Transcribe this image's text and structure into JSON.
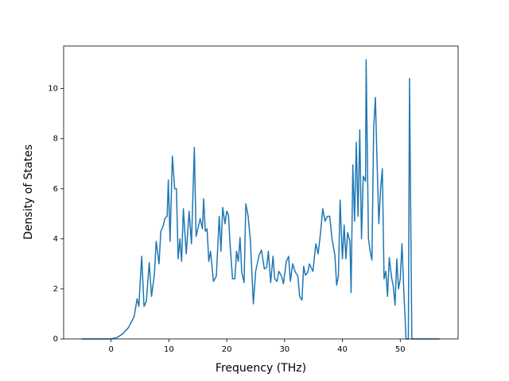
{
  "chart_data": {
    "type": "line",
    "x_label": "Frequency (THz)",
    "y_label": "Density of States",
    "xlim": [
      -8.2,
      60
    ],
    "ylim": [
      0,
      11.7
    ],
    "xticks": [
      0,
      10,
      20,
      30,
      40,
      50
    ],
    "yticks": [
      0,
      2,
      4,
      6,
      8,
      10
    ],
    "series": [
      {
        "color": "#1f77b4",
        "x": [
          -5.1,
          -2,
          0,
          1,
          2,
          3,
          4,
          4.5,
          4.8,
          5.3,
          5.7,
          6.1,
          6.6,
          7.0,
          7.5,
          7.8,
          8.3,
          8.6,
          9.0,
          9.3,
          9.7,
          9.9,
          10.2,
          10.6,
          11.0,
          11.3,
          11.6,
          11.9,
          12.2,
          12.5,
          13.0,
          13.5,
          13.9,
          14.4,
          14.7,
          15.0,
          15.4,
          15.8,
          16.0,
          16.3,
          16.6,
          16.9,
          17.2,
          17.7,
          18.2,
          18.7,
          19.0,
          19.3,
          19.7,
          20.0,
          20.3,
          20.6,
          21.0,
          21.4,
          21.7,
          22.0,
          22.3,
          22.6,
          23.0,
          23.3,
          23.7,
          24.1,
          24.6,
          25.0,
          25.6,
          26.0,
          26.5,
          26.9,
          27.2,
          27.6,
          28.0,
          28.3,
          28.7,
          29.0,
          29.5,
          29.8,
          30.3,
          30.7,
          31.0,
          31.4,
          31.8,
          32.3,
          32.6,
          33.0,
          33.3,
          33.6,
          34.0,
          34.3,
          34.9,
          35.4,
          35.8,
          36.2,
          36.6,
          37.0,
          37.4,
          37.8,
          38.2,
          38.7,
          39.0,
          39.3,
          39.6,
          40.0,
          40.3,
          40.6,
          40.9,
          41.3,
          41.5,
          41.8,
          42.1,
          42.4,
          42.7,
          43.0,
          43.3,
          43.6,
          44.0,
          44.1,
          44.5,
          44.8,
          45.1,
          45.4,
          45.7,
          46.0,
          46.3,
          46.6,
          46.9,
          47.2,
          47.5,
          47.8,
          48.1,
          48.5,
          48.8,
          49.1,
          49.4,
          49.7,
          50.0,
          50.3,
          50.6,
          51.0,
          51.4,
          51.6,
          52.0,
          52.5,
          56.8
        ],
        "values": [
          0,
          0,
          0,
          0.05,
          0.2,
          0.45,
          0.9,
          1.6,
          1.3,
          3.3,
          1.3,
          1.5,
          3.05,
          1.7,
          2.6,
          3.9,
          3.0,
          4.3,
          4.5,
          4.8,
          4.9,
          6.35,
          3.9,
          7.3,
          6.0,
          6.0,
          3.2,
          4.0,
          3.1,
          5.2,
          3.4,
          5.1,
          3.8,
          7.65,
          4.1,
          4.4,
          4.8,
          4.4,
          5.6,
          4.3,
          4.4,
          3.1,
          3.5,
          2.3,
          2.5,
          4.9,
          3.5,
          5.25,
          4.6,
          5.1,
          4.95,
          3.7,
          2.4,
          2.4,
          3.5,
          3.1,
          4.05,
          2.65,
          2.25,
          5.4,
          4.9,
          3.9,
          1.4,
          2.7,
          3.35,
          3.55,
          2.8,
          2.85,
          3.5,
          2.25,
          3.3,
          2.4,
          2.3,
          2.7,
          2.5,
          2.2,
          3.1,
          3.3,
          2.3,
          3.0,
          2.7,
          2.5,
          1.7,
          1.55,
          2.9,
          2.55,
          2.65,
          3.0,
          2.7,
          3.8,
          3.4,
          4.2,
          5.2,
          4.7,
          4.9,
          4.9,
          4.0,
          3.35,
          2.15,
          2.5,
          5.55,
          3.2,
          4.55,
          3.2,
          4.25,
          3.9,
          1.85,
          6.95,
          4.7,
          7.85,
          4.9,
          8.35,
          4.0,
          6.5,
          6.3,
          11.15,
          4.0,
          3.5,
          3.15,
          8.4,
          9.65,
          7.0,
          4.6,
          6.0,
          6.8,
          2.4,
          2.7,
          1.7,
          3.25,
          2.45,
          2.1,
          1.35,
          3.2,
          2.0,
          2.4,
          3.8,
          2.0,
          0,
          0,
          10.4,
          0,
          0,
          0
        ]
      }
    ]
  }
}
